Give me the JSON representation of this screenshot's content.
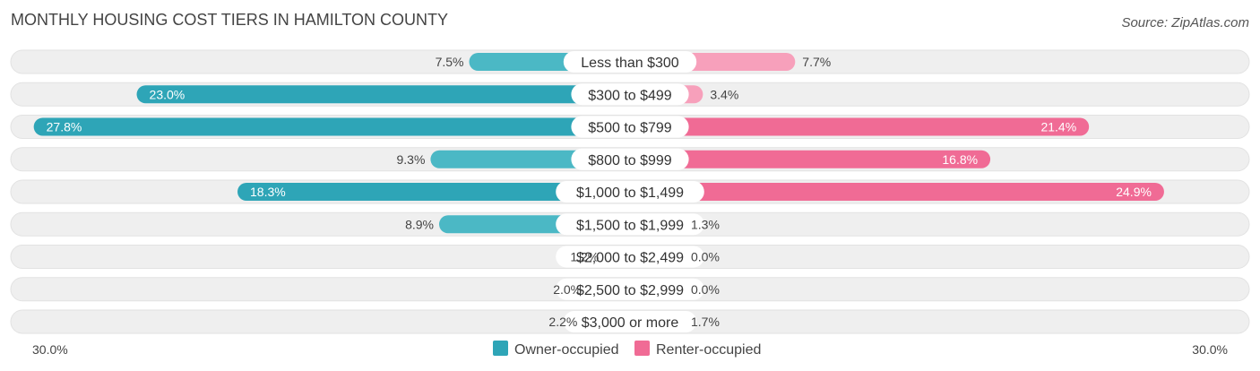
{
  "chart_data": {
    "type": "bar",
    "orientation": "horizontal-diverging",
    "title": "MONTHLY HOUSING COST TIERS IN HAMILTON COUNTY",
    "source": "Source: ZipAtlas.com",
    "categories": [
      "Less than $300",
      "$300 to $499",
      "$500 to $799",
      "$800 to $999",
      "$1,000 to $1,499",
      "$1,500 to $1,999",
      "$2,000 to $2,499",
      "$2,500 to $2,999",
      "$3,000 or more"
    ],
    "series": [
      {
        "name": "Owner-occupied",
        "color": "#4bb8c5",
        "color_strong": "#2ea5b7",
        "values": [
          7.5,
          23.0,
          27.8,
          9.3,
          18.3,
          8.9,
          1.2,
          2.0,
          2.2
        ]
      },
      {
        "name": "Renter-occupied",
        "color": "#f7a0bb",
        "color_strong": "#f06b95",
        "values": [
          7.7,
          3.4,
          21.4,
          16.8,
          24.9,
          1.3,
          0.0,
          0.0,
          1.7
        ]
      }
    ],
    "xlim": [
      -30,
      30
    ],
    "axis_left_label": "30.0%",
    "axis_right_label": "30.0%",
    "legend_position": "bottom-center"
  }
}
